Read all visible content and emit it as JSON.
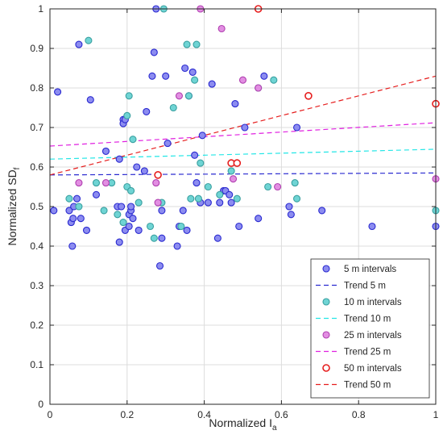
{
  "chart_data": {
    "type": "scatter",
    "title": "",
    "xlabel": "Normalized I",
    "xlabel_sub": "a",
    "ylabel": "Normalized SD",
    "ylabel_sub": "f",
    "xlim": [
      0,
      1
    ],
    "ylim": [
      0,
      1
    ],
    "xticks": [
      0,
      0.2,
      0.4,
      0.6,
      0.8,
      1
    ],
    "yticks": [
      0,
      0.1,
      0.2,
      0.3,
      0.4,
      0.5,
      0.6,
      0.7,
      0.8,
      0.9,
      1
    ],
    "xtick_labels": [
      "0",
      "0.2",
      "0.4",
      "0.6",
      "0.8",
      "1"
    ],
    "ytick_labels": [
      "0",
      "0.1",
      "0.2",
      "0.3",
      "0.4",
      "0.5",
      "0.6",
      "0.7",
      "0.8",
      "0.9",
      "1"
    ],
    "grid": true,
    "legend_position": "bottom-right",
    "legend": [
      {
        "label": "5 m intervals",
        "kind": "marker",
        "series": 0
      },
      {
        "label": "Trend 5 m",
        "kind": "line",
        "trend": 0
      },
      {
        "label": "10 m intervals",
        "kind": "marker",
        "series": 1
      },
      {
        "label": "Trend 10 m",
        "kind": "line",
        "trend": 1
      },
      {
        "label": "25 m intervals",
        "kind": "marker",
        "series": 2
      },
      {
        "label": "Trend 25 m",
        "kind": "line",
        "trend": 2
      },
      {
        "label": "50 m intervals",
        "kind": "marker",
        "series": 3
      },
      {
        "label": "Trend 50 m",
        "kind": "line",
        "trend": 3
      }
    ],
    "series": [
      {
        "name": "5 m intervals",
        "fill": "#8c8cf0",
        "stroke": "#2a2ad0",
        "points": [
          [
            0.01,
            0.49
          ],
          [
            0.02,
            0.79
          ],
          [
            0.05,
            0.49
          ],
          [
            0.055,
            0.46
          ],
          [
            0.058,
            0.4
          ],
          [
            0.06,
            0.47
          ],
          [
            0.062,
            0.5
          ],
          [
            0.07,
            0.52
          ],
          [
            0.075,
            0.91
          ],
          [
            0.08,
            0.47
          ],
          [
            0.095,
            0.44
          ],
          [
            0.105,
            0.77
          ],
          [
            0.12,
            0.53
          ],
          [
            0.145,
            0.64
          ],
          [
            0.175,
            0.5
          ],
          [
            0.18,
            0.62
          ],
          [
            0.18,
            0.41
          ],
          [
            0.185,
            0.5
          ],
          [
            0.19,
            0.72
          ],
          [
            0.19,
            0.71
          ],
          [
            0.195,
            0.72
          ],
          [
            0.195,
            0.44
          ],
          [
            0.205,
            0.48
          ],
          [
            0.205,
            0.45
          ],
          [
            0.21,
            0.49
          ],
          [
            0.21,
            0.5
          ],
          [
            0.215,
            0.47
          ],
          [
            0.225,
            0.6
          ],
          [
            0.23,
            0.44
          ],
          [
            0.245,
            0.59
          ],
          [
            0.25,
            0.74
          ],
          [
            0.265,
            0.83
          ],
          [
            0.27,
            0.89
          ],
          [
            0.275,
            1.0
          ],
          [
            0.285,
            0.35
          ],
          [
            0.29,
            0.49
          ],
          [
            0.29,
            0.42
          ],
          [
            0.3,
            0.83
          ],
          [
            0.305,
            0.66
          ],
          [
            0.33,
            0.4
          ],
          [
            0.335,
            0.45
          ],
          [
            0.345,
            0.49
          ],
          [
            0.35,
            0.85
          ],
          [
            0.355,
            0.44
          ],
          [
            0.36,
            0.78
          ],
          [
            0.37,
            0.84
          ],
          [
            0.375,
            0.63
          ],
          [
            0.38,
            0.56
          ],
          [
            0.39,
            0.51
          ],
          [
            0.395,
            0.68
          ],
          [
            0.41,
            0.51
          ],
          [
            0.42,
            0.81
          ],
          [
            0.435,
            0.42
          ],
          [
            0.44,
            0.51
          ],
          [
            0.45,
            0.54
          ],
          [
            0.455,
            0.54
          ],
          [
            0.465,
            0.53
          ],
          [
            0.47,
            0.51
          ],
          [
            0.48,
            0.76
          ],
          [
            0.49,
            0.45
          ],
          [
            0.505,
            0.7
          ],
          [
            0.54,
            0.47
          ],
          [
            0.555,
            0.83
          ],
          [
            0.62,
            0.5
          ],
          [
            0.625,
            0.48
          ],
          [
            0.64,
            0.7
          ],
          [
            0.705,
            0.49
          ],
          [
            0.835,
            0.45
          ],
          [
            1.0,
            0.45
          ]
        ]
      },
      {
        "name": "10 m intervals",
        "fill": "#6fd4d4",
        "stroke": "#3aa0a0",
        "points": [
          [
            0.05,
            0.52
          ],
          [
            0.075,
            0.5
          ],
          [
            0.1,
            0.92
          ],
          [
            0.12,
            0.56
          ],
          [
            0.14,
            0.49
          ],
          [
            0.16,
            0.56
          ],
          [
            0.175,
            0.48
          ],
          [
            0.19,
            0.46
          ],
          [
            0.2,
            0.73
          ],
          [
            0.2,
            0.55
          ],
          [
            0.205,
            0.78
          ],
          [
            0.21,
            0.54
          ],
          [
            0.215,
            0.67
          ],
          [
            0.23,
            0.51
          ],
          [
            0.26,
            0.45
          ],
          [
            0.27,
            0.42
          ],
          [
            0.29,
            0.51
          ],
          [
            0.295,
            1.0
          ],
          [
            0.32,
            0.75
          ],
          [
            0.34,
            0.45
          ],
          [
            0.355,
            0.91
          ],
          [
            0.36,
            0.78
          ],
          [
            0.365,
            0.52
          ],
          [
            0.375,
            0.82
          ],
          [
            0.38,
            0.91
          ],
          [
            0.385,
            0.52
          ],
          [
            0.39,
            0.61
          ],
          [
            0.41,
            0.55
          ],
          [
            0.44,
            0.53
          ],
          [
            0.47,
            0.59
          ],
          [
            0.485,
            0.52
          ],
          [
            0.54,
            0.8
          ],
          [
            0.565,
            0.55
          ],
          [
            0.58,
            0.82
          ],
          [
            0.635,
            0.56
          ],
          [
            0.64,
            0.52
          ],
          [
            1.0,
            0.49
          ]
        ]
      },
      {
        "name": "25 m intervals",
        "fill": "#e28ee2",
        "stroke": "#b040b0",
        "points": [
          [
            0.075,
            0.56
          ],
          [
            0.145,
            0.56
          ],
          [
            0.275,
            0.56
          ],
          [
            0.28,
            0.51
          ],
          [
            0.335,
            0.78
          ],
          [
            0.39,
            1.0
          ],
          [
            0.445,
            0.95
          ],
          [
            0.475,
            0.57
          ],
          [
            0.5,
            0.82
          ],
          [
            0.54,
            0.8
          ],
          [
            0.59,
            0.55
          ],
          [
            1.0,
            0.57
          ]
        ]
      },
      {
        "name": "50 m intervals",
        "fill": "#ffffff",
        "stroke": "#e61e1e",
        "points": [
          [
            0.28,
            0.58
          ],
          [
            0.47,
            0.61
          ],
          [
            0.485,
            0.61
          ],
          [
            0.54,
            1.0
          ],
          [
            0.67,
            0.78
          ],
          [
            1.0,
            0.76
          ]
        ]
      }
    ],
    "trends": [
      {
        "name": "Trend 5 m",
        "color": "#2a2ad0",
        "x": [
          0,
          1
        ],
        "y": [
          0.58,
          0.585
        ]
      },
      {
        "name": "Trend 10 m",
        "color": "#22e6e6",
        "x": [
          0,
          1
        ],
        "y": [
          0.62,
          0.645
        ]
      },
      {
        "name": "Trend 25 m",
        "color": "#e020e0",
        "x": [
          0,
          1
        ],
        "y": [
          0.653,
          0.712
        ]
      },
      {
        "name": "Trend 50 m",
        "color": "#e61e1e",
        "x": [
          0,
          1
        ],
        "y": [
          0.58,
          0.83
        ]
      }
    ]
  }
}
